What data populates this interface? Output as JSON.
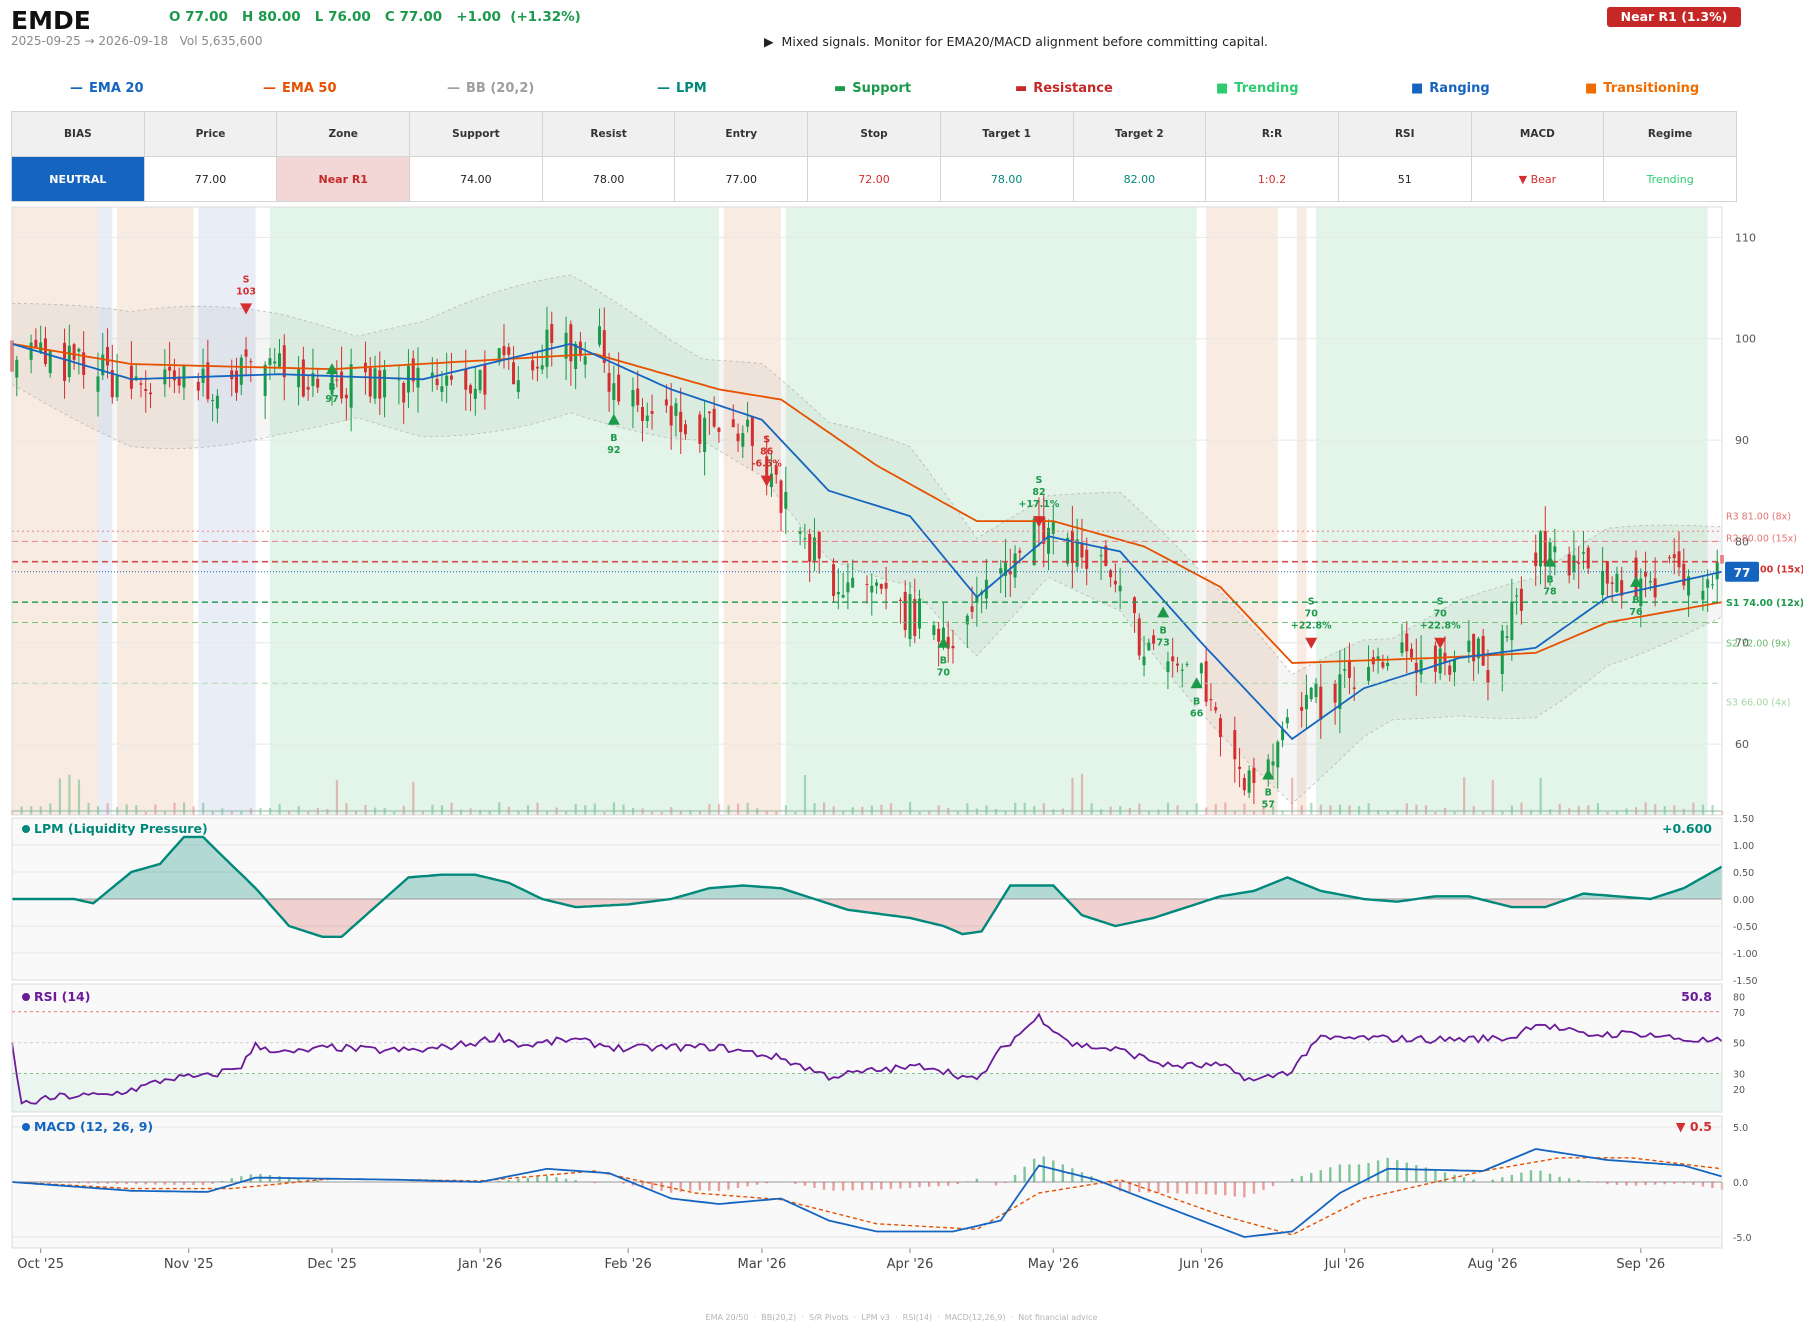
{
  "header": {
    "ticker": "EMDE",
    "ohlc": "O 77.00   H 80.00   L 76.00   C 77.00   +1.00  (+1.32%)",
    "date_range": "2025-09-25 → 2026-09-18",
    "volume": "Vol 5,635,600",
    "advice": "▶  Mixed signals. Monitor for EMA20/MACD alignment before committing capital.",
    "zone_badge": "Near R1  (1.3%)"
  },
  "legend": [
    {
      "symbol": "—",
      "label": "EMA 20",
      "color": "#1565c0"
    },
    {
      "symbol": "—",
      "label": "EMA 50",
      "color": "#e65100"
    },
    {
      "symbol": "—",
      "label": "BB (20,2)",
      "color": "#9e9e9e"
    },
    {
      "symbol": "—",
      "label": "LPM",
      "color": "#00897b"
    },
    {
      "symbol": "▬",
      "label": "Support",
      "color": "#1a9a4a"
    },
    {
      "symbol": "▬",
      "label": "Resistance",
      "color": "#c62828"
    },
    {
      "symbol": "■",
      "label": "Trending",
      "color": "#2ecc71"
    },
    {
      "symbol": "■",
      "label": "Ranging",
      "color": "#1565c0"
    },
    {
      "symbol": "■",
      "label": "Transitioning",
      "color": "#ef6c00"
    }
  ],
  "table": {
    "headers": [
      "BIAS",
      "Price",
      "Zone",
      "Support",
      "Resist",
      "Entry",
      "Stop",
      "Target 1",
      "Target 2",
      "R:R",
      "RSI",
      "MACD",
      "Regime"
    ],
    "values": [
      "NEUTRAL",
      "77.00",
      "Near R1",
      "74.00",
      "78.00",
      "77.00",
      "72.00",
      "78.00",
      "82.00",
      "1:0.2",
      "51",
      "▼ Bear",
      "Trending"
    ]
  },
  "colors": {
    "up": "#1a9a4a",
    "down": "#d32f2f",
    "ema20": "#1565c0",
    "ema50": "#e65100",
    "lpm": "#00897b",
    "rsi": "#6a1b9a",
    "macd": "#1565c0",
    "signal": "#e65100",
    "trending_bg": "#e3f4e8",
    "ranging_bg": "#e8edf6",
    "transition_bg": "#f8ebe2"
  },
  "chart_data": {
    "type": "candlestick",
    "x_ticks": [
      "Oct '25",
      "Nov '25",
      "Dec '25",
      "Jan '26",
      "Feb '26",
      "Mar '26",
      "Apr '26",
      "May '26",
      "Jun '26",
      "Jul '26",
      "Aug '26",
      "Sep '26"
    ],
    "x_range": [
      "2025-09-25",
      "2026-09-18"
    ],
    "price": {
      "ylim": [
        53,
        113
      ],
      "yticks": [
        60,
        70,
        80,
        90,
        100,
        110
      ],
      "last_price": 77,
      "last_label": "77",
      "close_anchors": [
        [
          "2025-09-25",
          99
        ],
        [
          "2025-10-10",
          97
        ],
        [
          "2025-10-25",
          95
        ],
        [
          "2025-11-08",
          96
        ],
        [
          "2025-11-18",
          97
        ],
        [
          "2025-12-01",
          96
        ],
        [
          "2025-12-15",
          95
        ],
        [
          "2025-12-31",
          96
        ],
        [
          "2026-01-10",
          98
        ],
        [
          "2026-01-25",
          100
        ],
        [
          "2026-02-01",
          93
        ],
        [
          "2026-02-15",
          91
        ],
        [
          "2026-03-01",
          90
        ],
        [
          "2026-03-08",
          80
        ],
        [
          "2026-03-20",
          75
        ],
        [
          "2026-04-05",
          72
        ],
        [
          "2026-04-12",
          71
        ],
        [
          "2026-04-25",
          81
        ],
        [
          "2026-05-10",
          78
        ],
        [
          "2026-05-20",
          70
        ],
        [
          "2026-06-01",
          66
        ],
        [
          "2026-06-10",
          57
        ],
        [
          "2026-06-20",
          62
        ],
        [
          "2026-07-01",
          66
        ],
        [
          "2026-07-20",
          69
        ],
        [
          "2026-08-01",
          68
        ],
        [
          "2026-08-10",
          79
        ],
        [
          "2026-08-25",
          76
        ],
        [
          "2026-09-18",
          77
        ]
      ],
      "ema20_anchors": [
        [
          "2025-09-25",
          99.5
        ],
        [
          "2025-10-20",
          96
        ],
        [
          "2025-11-20",
          96.5
        ],
        [
          "2025-12-20",
          96
        ],
        [
          "2026-01-20",
          99.5
        ],
        [
          "2026-02-10",
          95
        ],
        [
          "2026-03-01",
          92
        ],
        [
          "2026-03-15",
          85
        ],
        [
          "2026-04-01",
          82.5
        ],
        [
          "2026-04-15",
          74.5
        ],
        [
          "2026-04-30",
          80.5
        ],
        [
          "2026-05-15",
          79
        ],
        [
          "2026-06-01",
          70
        ],
        [
          "2026-06-20",
          60.5
        ],
        [
          "2026-07-05",
          65.5
        ],
        [
          "2026-07-25",
          68.5
        ],
        [
          "2026-08-10",
          69.5
        ],
        [
          "2026-08-25",
          74.5
        ],
        [
          "2026-09-18",
          77
        ]
      ],
      "ema50_anchors": [
        [
          "2025-09-25",
          99.5
        ],
        [
          "2025-10-20",
          97.5
        ],
        [
          "2025-12-01",
          97
        ],
        [
          "2026-01-25",
          98.5
        ],
        [
          "2026-02-20",
          95
        ],
        [
          "2026-03-05",
          94
        ],
        [
          "2026-03-25",
          87.5
        ],
        [
          "2026-04-15",
          82
        ],
        [
          "2026-05-01",
          82
        ],
        [
          "2026-05-20",
          79.5
        ],
        [
          "2026-06-05",
          75.5
        ],
        [
          "2026-06-20",
          68
        ],
        [
          "2026-07-20",
          68.5
        ],
        [
          "2026-08-10",
          69
        ],
        [
          "2026-08-25",
          72
        ],
        [
          "2026-09-18",
          74
        ]
      ],
      "levels": [
        {
          "label": "R3 81.00 (8x)",
          "value": 81,
          "color": "#e57373",
          "style": "dotted"
        },
        {
          "label": "R2 80.00 (15x)",
          "value": 80,
          "color": "#e57373",
          "style": "dashed"
        },
        {
          "label": "R1 78.00 (15x)",
          "value": 78,
          "color": "#d32f2f",
          "style": "dashed"
        },
        {
          "label": "S1 74.00 (12x)",
          "value": 74,
          "color": "#1a9a4a",
          "style": "dashed"
        },
        {
          "label": "S2 72.00 (9x)",
          "value": 72,
          "color": "#66bb6a",
          "style": "dashed"
        },
        {
          "label": "S3 66.00 (4x)",
          "value": 66,
          "color": "#a5d6a7",
          "style": "dashed"
        }
      ],
      "regimes": [
        {
          "from": "2025-09-25",
          "to": "2025-10-13",
          "type": "transition"
        },
        {
          "from": "2025-10-13",
          "to": "2025-10-16",
          "type": "ranging"
        },
        {
          "from": "2025-10-17",
          "to": "2025-11-02",
          "type": "transition"
        },
        {
          "from": "2025-11-03",
          "to": "2025-11-15",
          "type": "ranging"
        },
        {
          "from": "2025-11-18",
          "to": "2026-02-20",
          "type": "trending"
        },
        {
          "from": "2026-02-21",
          "to": "2026-03-05",
          "type": "transition"
        },
        {
          "from": "2026-03-06",
          "to": "2026-05-31",
          "type": "trending"
        },
        {
          "from": "2026-06-02",
          "to": "2026-06-17",
          "type": "transition"
        },
        {
          "from": "2026-06-21",
          "to": "2026-06-23",
          "type": "transition"
        },
        {
          "from": "2026-06-25",
          "to": "2026-09-15",
          "type": "trending"
        }
      ],
      "markers": [
        {
          "date": "2025-11-13",
          "side": "S",
          "price": 103,
          "lines": [
            "S",
            "103"
          ]
        },
        {
          "date": "2025-12-01",
          "side": "B",
          "price": 97,
          "lines": [
            "B",
            "97"
          ]
        },
        {
          "date": "2026-01-29",
          "side": "B",
          "price": 92,
          "lines": [
            "B",
            "92"
          ]
        },
        {
          "date": "2026-03-02",
          "side": "S",
          "price": 86,
          "lines": [
            "S",
            "86",
            "-6.5%"
          ]
        },
        {
          "date": "2026-04-08",
          "side": "B",
          "price": 70,
          "lines": [
            "B",
            "70"
          ]
        },
        {
          "date": "2026-04-28",
          "side": "S",
          "price": 82,
          "lines": [
            "S",
            "82",
            "+17.1%"
          ]
        },
        {
          "date": "2026-05-24",
          "side": "B",
          "price": 73,
          "lines": [
            "B",
            "73"
          ]
        },
        {
          "date": "2026-05-31",
          "side": "B",
          "price": 66,
          "lines": [
            "B",
            "66"
          ]
        },
        {
          "date": "2026-06-15",
          "side": "B",
          "price": 57,
          "lines": [
            "B",
            "57"
          ]
        },
        {
          "date": "2026-06-24",
          "side": "S",
          "price": 70,
          "lines": [
            "S",
            "70",
            "+22.8%"
          ]
        },
        {
          "date": "2026-07-21",
          "side": "S",
          "price": 70,
          "lines": [
            "S",
            "70",
            "+22.8%"
          ]
        },
        {
          "date": "2026-08-13",
          "side": "B",
          "price": 78,
          "lines": [
            "B",
            "78"
          ]
        },
        {
          "date": "2026-08-31",
          "side": "B",
          "price": 76,
          "lines": [
            "B",
            "76"
          ]
        }
      ]
    },
    "lpm": {
      "title": "LPM (Liquidity Pressure)",
      "value_label": "+0.600",
      "ylim": [
        -1.5,
        1.5
      ],
      "yticks": [
        "1.50",
        "1.00",
        "0.50",
        "0.00",
        "-0.50",
        "-1.00",
        "-1.50"
      ],
      "anchors": [
        [
          "2025-09-25",
          0
        ],
        [
          "2025-10-08",
          0
        ],
        [
          "2025-10-12",
          -0.08
        ],
        [
          "2025-10-20",
          0.5
        ],
        [
          "2025-10-26",
          0.65
        ],
        [
          "2025-10-31",
          1.15
        ],
        [
          "2025-11-04",
          1.15
        ],
        [
          "2025-11-08",
          0.8
        ],
        [
          "2025-11-15",
          0.2
        ],
        [
          "2025-11-22",
          -0.5
        ],
        [
          "2025-11-29",
          -0.7
        ],
        [
          "2025-12-03",
          -0.7
        ],
        [
          "2025-12-10",
          -0.15
        ],
        [
          "2025-12-17",
          0.4
        ],
        [
          "2025-12-24",
          0.45
        ],
        [
          "2025-12-31",
          0.45
        ],
        [
          "2026-01-07",
          0.3
        ],
        [
          "2026-01-14",
          0
        ],
        [
          "2026-01-21",
          -0.15
        ],
        [
          "2026-02-01",
          -0.1
        ],
        [
          "2026-02-10",
          0
        ],
        [
          "2026-02-18",
          0.2
        ],
        [
          "2026-02-25",
          0.25
        ],
        [
          "2026-03-05",
          0.2
        ],
        [
          "2026-03-12",
          0
        ],
        [
          "2026-03-19",
          -0.2
        ],
        [
          "2026-04-01",
          -0.35
        ],
        [
          "2026-04-08",
          -0.5
        ],
        [
          "2026-04-12",
          -0.65
        ],
        [
          "2026-04-16",
          -0.6
        ],
        [
          "2026-04-22",
          0.25
        ],
        [
          "2026-05-01",
          0.25
        ],
        [
          "2026-05-07",
          -0.3
        ],
        [
          "2026-05-14",
          -0.5
        ],
        [
          "2026-05-22",
          -0.35
        ],
        [
          "2026-05-29",
          -0.15
        ],
        [
          "2026-06-05",
          0.05
        ],
        [
          "2026-06-12",
          0.15
        ],
        [
          "2026-06-19",
          0.4
        ],
        [
          "2026-06-26",
          0.15
        ],
        [
          "2026-07-05",
          0
        ],
        [
          "2026-07-12",
          -0.05
        ],
        [
          "2026-07-20",
          0.05
        ],
        [
          "2026-07-27",
          0.05
        ],
        [
          "2026-08-05",
          -0.15
        ],
        [
          "2026-08-12",
          -0.15
        ],
        [
          "2026-08-20",
          0.1
        ],
        [
          "2026-08-27",
          0.05
        ],
        [
          "2026-09-03",
          0
        ],
        [
          "2026-09-10",
          0.2
        ],
        [
          "2026-09-18",
          0.6
        ]
      ]
    },
    "rsi": {
      "title": "RSI (14)",
      "value_label": "50.8",
      "ylim": [
        5,
        88
      ],
      "yticks": [
        20,
        30,
        50,
        70,
        80
      ],
      "bands": [
        30,
        70
      ],
      "anchors": [
        [
          "2025-09-25",
          50
        ],
        [
          "2025-09-27",
          10
        ],
        [
          "2025-10-05",
          15
        ],
        [
          "2025-10-15",
          16
        ],
        [
          "2025-10-22",
          21
        ],
        [
          "2025-10-28",
          27
        ],
        [
          "2025-11-05",
          28
        ],
        [
          "2025-11-12",
          35
        ],
        [
          "2025-11-15",
          48
        ],
        [
          "2025-11-22",
          43
        ],
        [
          "2025-12-01",
          47
        ],
        [
          "2025-12-10",
          45
        ],
        [
          "2025-12-20",
          45
        ],
        [
          "2025-12-31",
          50
        ],
        [
          "2026-01-05",
          54
        ],
        [
          "2026-01-10",
          48
        ],
        [
          "2026-01-20",
          52
        ],
        [
          "2026-01-31",
          46
        ],
        [
          "2026-02-10",
          47
        ],
        [
          "2026-02-20",
          47
        ],
        [
          "2026-03-05",
          40
        ],
        [
          "2026-03-15",
          28
        ],
        [
          "2026-03-25",
          32
        ],
        [
          "2026-04-05",
          35
        ],
        [
          "2026-04-15",
          25
        ],
        [
          "2026-04-20",
          45
        ],
        [
          "2026-04-28",
          67
        ],
        [
          "2026-05-05",
          49
        ],
        [
          "2026-05-15",
          45
        ],
        [
          "2026-05-25",
          35
        ],
        [
          "2026-06-05",
          35
        ],
        [
          "2026-06-12",
          25
        ],
        [
          "2026-06-20",
          32
        ],
        [
          "2026-06-25",
          52
        ],
        [
          "2026-07-05",
          53
        ],
        [
          "2026-07-20",
          52
        ],
        [
          "2026-08-05",
          53
        ],
        [
          "2026-08-10",
          63
        ],
        [
          "2026-08-20",
          55
        ],
        [
          "2026-09-01",
          56
        ],
        [
          "2026-09-10",
          52
        ],
        [
          "2026-09-18",
          50.8
        ]
      ]
    },
    "macd": {
      "title": "MACD (12, 26, 9)",
      "value_label": "▼ 0.5",
      "ylim": [
        -6,
        6
      ],
      "yticks": [
        "5.0",
        "0.0",
        "-5.0"
      ],
      "macd_anchors": [
        [
          "2025-09-25",
          0
        ],
        [
          "2025-10-20",
          -0.8
        ],
        [
          "2025-11-05",
          -0.9
        ],
        [
          "2025-11-15",
          0.4
        ],
        [
          "2025-12-15",
          0.2
        ],
        [
          "2026-01-01",
          0
        ],
        [
          "2026-01-15",
          1.2
        ],
        [
          "2026-01-28",
          0.8
        ],
        [
          "2026-02-10",
          -1.5
        ],
        [
          "2026-02-20",
          -2.0
        ],
        [
          "2026-03-05",
          -1.5
        ],
        [
          "2026-03-15",
          -3.5
        ],
        [
          "2026-03-25",
          -4.5
        ],
        [
          "2026-04-10",
          -4.5
        ],
        [
          "2026-04-20",
          -3.5
        ],
        [
          "2026-04-28",
          1.5
        ],
        [
          "2026-05-10",
          0.2
        ],
        [
          "2026-05-20",
          -1.5
        ],
        [
          "2026-06-01",
          -3.5
        ],
        [
          "2026-06-10",
          -5.0
        ],
        [
          "2026-06-20",
          -4.5
        ],
        [
          "2026-06-30",
          -1.0
        ],
        [
          "2026-07-10",
          1.2
        ],
        [
          "2026-07-30",
          1.0
        ],
        [
          "2026-08-10",
          3.0
        ],
        [
          "2026-08-25",
          2.0
        ],
        [
          "2026-09-10",
          1.5
        ],
        [
          "2026-09-18",
          0.5
        ]
      ],
      "signal_anchors": [
        [
          "2025-09-25",
          0
        ],
        [
          "2025-10-20",
          -0.6
        ],
        [
          "2025-11-10",
          -0.6
        ],
        [
          "2025-12-01",
          0.3
        ],
        [
          "2026-01-01",
          0.1
        ],
        [
          "2026-01-25",
          1.0
        ],
        [
          "2026-02-15",
          -1.0
        ],
        [
          "2026-03-05",
          -1.6
        ],
        [
          "2026-03-25",
          -3.8
        ],
        [
          "2026-04-15",
          -4.3
        ],
        [
          "2026-04-28",
          -1.0
        ],
        [
          "2026-05-15",
          0.2
        ],
        [
          "2026-06-05",
          -3.0
        ],
        [
          "2026-06-20",
          -4.8
        ],
        [
          "2026-07-05",
          -1.5
        ],
        [
          "2026-07-30",
          1.0
        ],
        [
          "2026-08-15",
          2.2
        ],
        [
          "2026-08-30",
          2.2
        ],
        [
          "2026-09-18",
          1.2
        ]
      ]
    }
  },
  "footer": "EMA 20/50  ·  BB(20,2)  ·  S/R Pivots  ·  LPM v3  ·  RSI(14)  ·  MACD(12,26,9)  ·  Not financial advice"
}
